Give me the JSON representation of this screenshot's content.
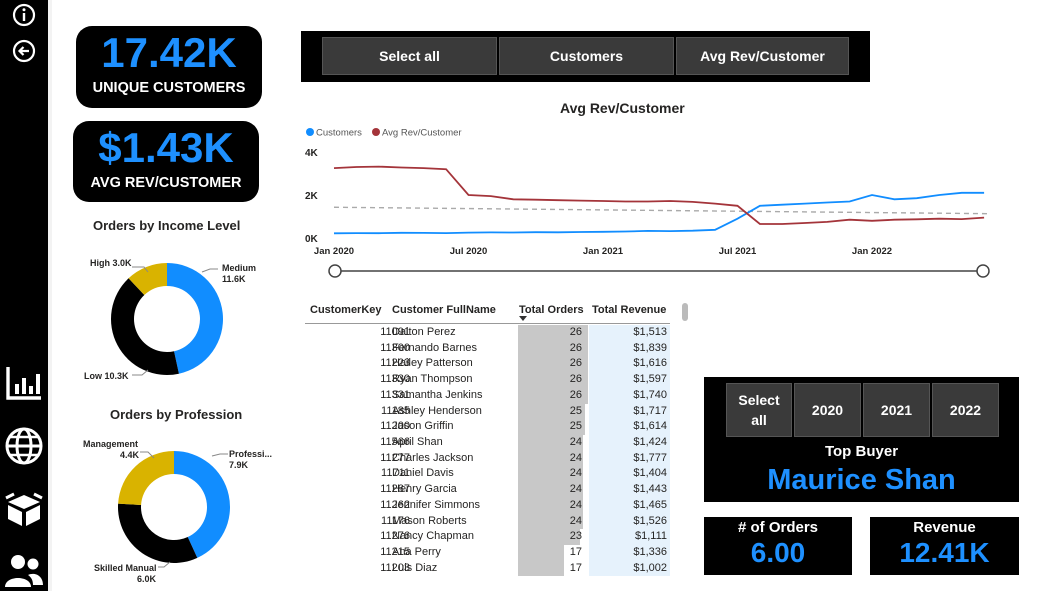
{
  "nav": {
    "icons": [
      "info-icon",
      "back-arrow-icon",
      "bar-chart-icon",
      "globe-icon",
      "box-icon",
      "users-icon"
    ]
  },
  "kpis": {
    "unique_customers": {
      "value": "17.42K",
      "label": "UNIQUE CUSTOMERS"
    },
    "avg_rev": {
      "value": "$1.43K",
      "label": "AVG REV/CUSTOMER"
    }
  },
  "income_chart": {
    "title": "Orders by Income Level",
    "labels": [
      {
        "name": "High",
        "value": "3.0K",
        "text": "High 3.0K"
      },
      {
        "name": "Medium",
        "value": "11.6K"
      },
      {
        "name": "Low",
        "value": "10.3K",
        "text": "Low 10.3K"
      }
    ]
  },
  "profession_chart": {
    "title": "Orders by Profession",
    "labels": [
      {
        "name": "Management",
        "value": "4.4K"
      },
      {
        "name": "Professi...",
        "value": "7.9K"
      },
      {
        "name": "Skilled Manual",
        "value": "6.0K"
      }
    ]
  },
  "metric_slicer": {
    "buttons": [
      "Select all",
      "Customers",
      "Avg Rev/Customer"
    ]
  },
  "line_chart_title": "Avg Rev/Customer",
  "chart_data": [
    {
      "type": "pie",
      "title": "Orders by Income Level",
      "categories": [
        "Medium",
        "Low",
        "High"
      ],
      "values": [
        11.6,
        10.3,
        3.0
      ],
      "colors": [
        "#118DFF",
        "#000000",
        "#D9B300"
      ]
    },
    {
      "type": "pie",
      "title": "Orders by Profession",
      "categories": [
        "Professi...",
        "Skilled Manual",
        "Management"
      ],
      "values": [
        7.9,
        6.0,
        4.4
      ],
      "colors": [
        "#118DFF",
        "#000000",
        "#D9B300"
      ]
    },
    {
      "type": "line",
      "title": "Avg Rev/Customer",
      "x_ticks": [
        "Jan 2020",
        "Jul 2020",
        "Jan 2021",
        "Jul 2021",
        "Jan 2022"
      ],
      "y_ticks": [
        "0K",
        "2K",
        "4K"
      ],
      "ylim": [
        0,
        4000
      ],
      "legend": "top-left",
      "series": [
        {
          "name": "Customers",
          "color": "#118DFF",
          "x": [
            "2020-01",
            "2020-02",
            "2020-03",
            "2020-04",
            "2020-05",
            "2020-06",
            "2020-07",
            "2020-08",
            "2020-09",
            "2020-10",
            "2020-11",
            "2020-12",
            "2021-01",
            "2021-02",
            "2021-03",
            "2021-04",
            "2021-05",
            "2021-06",
            "2021-07",
            "2021-08",
            "2021-09",
            "2021-10",
            "2021-11",
            "2021-12",
            "2022-01",
            "2022-02",
            "2022-03",
            "2022-04",
            "2022-05",
            "2022-06"
          ],
          "values": [
            220,
            230,
            225,
            240,
            235,
            230,
            250,
            260,
            255,
            270,
            265,
            280,
            290,
            300,
            330,
            320,
            340,
            380,
            900,
            1500,
            1550,
            1600,
            1650,
            1700,
            2000,
            1800,
            1850,
            2000,
            2100,
            2100
          ]
        },
        {
          "name": "Avg Rev/Customer",
          "color": "#A4343A",
          "x": [
            "2020-01",
            "2020-02",
            "2020-03",
            "2020-04",
            "2020-05",
            "2020-06",
            "2020-07",
            "2020-08",
            "2020-09",
            "2020-10",
            "2020-11",
            "2020-12",
            "2021-01",
            "2021-02",
            "2021-03",
            "2021-04",
            "2021-05",
            "2021-06",
            "2021-07",
            "2021-08",
            "2021-09",
            "2021-10",
            "2021-11",
            "2021-12",
            "2022-01",
            "2022-02",
            "2022-03",
            "2022-04",
            "2022-05",
            "2022-06"
          ],
          "values": [
            3250,
            3300,
            3320,
            3280,
            3250,
            3200,
            2000,
            1950,
            1800,
            1780,
            1760,
            1740,
            1720,
            1700,
            1700,
            1720,
            1680,
            1600,
            1500,
            650,
            650,
            700,
            750,
            850,
            800,
            850,
            870,
            900,
            880,
            950
          ]
        }
      ],
      "reference_line": {
        "value": 1430,
        "style": "dashed"
      }
    }
  ],
  "table": {
    "headers": [
      "CustomerKey",
      "Customer FullName",
      "Total Orders",
      "Total Revenue"
    ],
    "sort_column": "Total Orders",
    "rows": [
      {
        "key": "11091",
        "name": "Dalton Perez",
        "orders": "26",
        "revenue": "$1,513"
      },
      {
        "key": "11300",
        "name": "Fernando Barnes",
        "orders": "26",
        "revenue": "$1,839"
      },
      {
        "key": "11223",
        "name": "Hailey Patterson",
        "orders": "26",
        "revenue": "$1,616"
      },
      {
        "key": "11330",
        "name": "Ryan Thompson",
        "orders": "26",
        "revenue": "$1,597"
      },
      {
        "key": "11331",
        "name": "Samantha Jenkins",
        "orders": "26",
        "revenue": "$1,740"
      },
      {
        "key": "11185",
        "name": "Ashley Henderson",
        "orders": "25",
        "revenue": "$1,717"
      },
      {
        "key": "11200",
        "name": "Jason Griffin",
        "orders": "25",
        "revenue": "$1,614"
      },
      {
        "key": "11566",
        "name": "April Shan",
        "orders": "24",
        "revenue": "$1,424"
      },
      {
        "key": "11277",
        "name": "Charles Jackson",
        "orders": "24",
        "revenue": "$1,777"
      },
      {
        "key": "11711",
        "name": "Daniel Davis",
        "orders": "24",
        "revenue": "$1,404"
      },
      {
        "key": "11287",
        "name": "Henry Garcia",
        "orders": "24",
        "revenue": "$1,443"
      },
      {
        "key": "11262",
        "name": "Jennifer Simmons",
        "orders": "24",
        "revenue": "$1,465"
      },
      {
        "key": "11176",
        "name": "Mason Roberts",
        "orders": "24",
        "revenue": "$1,526"
      },
      {
        "key": "11276",
        "name": "Nancy Chapman",
        "orders": "23",
        "revenue": "$1,111"
      },
      {
        "key": "11215",
        "name": "Ana Perry",
        "orders": "17",
        "revenue": "$1,336"
      },
      {
        "key": "11203",
        "name": "Luis Diaz",
        "orders": "17",
        "revenue": "$1,002"
      }
    ]
  },
  "year_slicer": {
    "buttons": [
      "Select all",
      "2020",
      "2021",
      "2022"
    ],
    "top_buyer_label": "Top Buyer",
    "top_buyer_name": "Maurice Shan"
  },
  "mini_kpis": {
    "orders": {
      "label": "# of Orders",
      "value": "6.00"
    },
    "revenue": {
      "label": "Revenue",
      "value": "12.41K"
    }
  }
}
